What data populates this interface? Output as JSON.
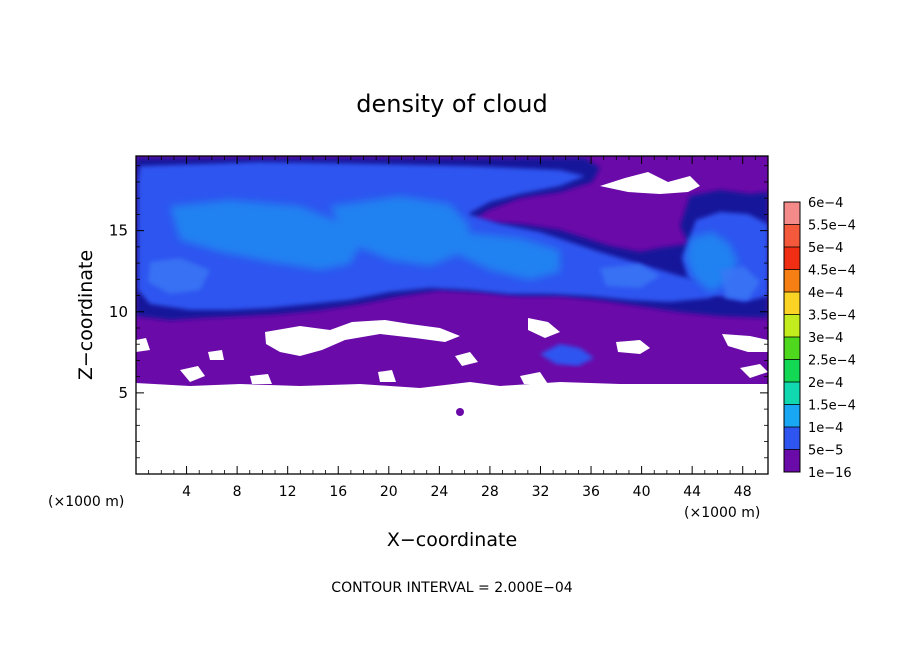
{
  "chart_data": {
    "type": "heatmap",
    "title": "density of cloud",
    "xlabel": "X−coordinate",
    "ylabel": "Z−coordinate",
    "x_unit_left": "(×1000 m)",
    "x_unit_right": "(×1000 m)",
    "footer": "CONTOUR INTERVAL = 2.000E−04",
    "xlim": [
      0,
      50
    ],
    "ylim": [
      0,
      19.6
    ],
    "x_ticks": [
      4,
      8,
      12,
      16,
      20,
      24,
      28,
      32,
      36,
      40,
      44,
      48
    ],
    "x_tick_labels": [
      "4",
      "8",
      "12",
      "16",
      "20",
      "24",
      "28",
      "32",
      "36",
      "40",
      "44",
      "48"
    ],
    "y_ticks": [
      5,
      10,
      15
    ],
    "y_tick_labels": [
      "5",
      "10",
      "15"
    ],
    "colorbar": {
      "labels": [
        "6e−4",
        "5.5e−4",
        "5e−4",
        "4.5e−4",
        "4e−4",
        "3.5e−4",
        "3e−4",
        "2.5e−4",
        "2e−4",
        "1.5e−4",
        "1e−4",
        "5e−5",
        "1e−16"
      ],
      "colors": [
        "#f48a8a",
        "#f4593b",
        "#f02e14",
        "#f57f12",
        "#fbd324",
        "#c2ec1e",
        "#4ed81e",
        "#12d854",
        "#12d8b0",
        "#19a6f2",
        "#2f55f0",
        "#13139a",
        "#6a0aa8"
      ]
    },
    "field_colors": {
      "background": "#ffffff",
      "cloud_base": "#6a0aa8",
      "dark_blue": "#13139a",
      "blue": "#2f55f0",
      "light_blue": "#19a6f2"
    }
  }
}
